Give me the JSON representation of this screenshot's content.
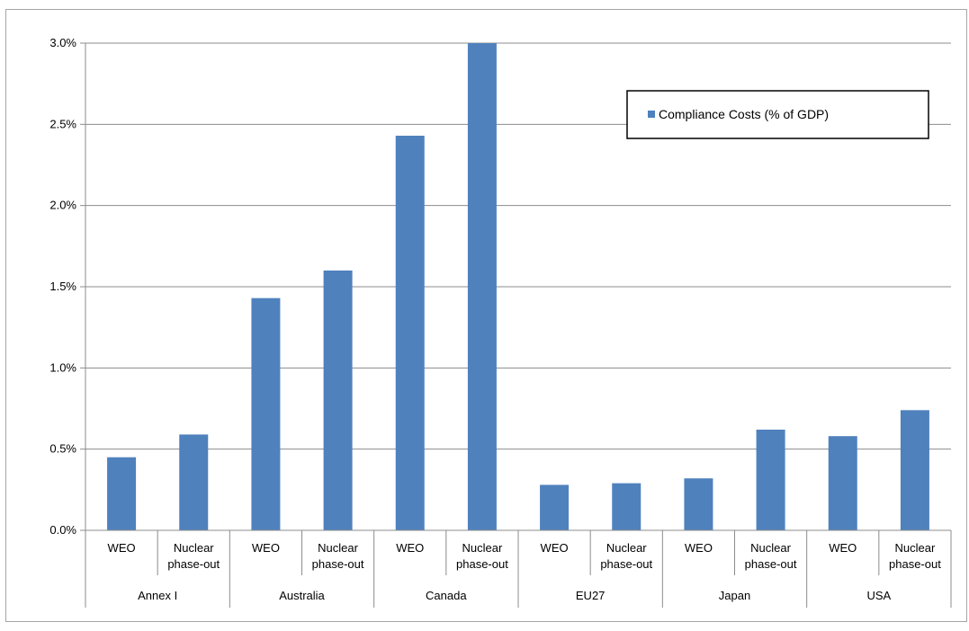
{
  "chart_data": {
    "type": "bar",
    "categories": [
      [
        "WEO"
      ],
      [
        "Nuclear",
        "phase-out"
      ],
      [
        "WEO"
      ],
      [
        "Nuclear",
        "phase-out"
      ],
      [
        "WEO"
      ],
      [
        "Nuclear",
        "phase-out"
      ],
      [
        "WEO"
      ],
      [
        "Nuclear",
        "phase-out"
      ],
      [
        "WEO"
      ],
      [
        "Nuclear",
        "phase-out"
      ],
      [
        "WEO"
      ],
      [
        "Nuclear",
        "phase-out"
      ]
    ],
    "groups": [
      "Annex I",
      "Australia",
      "Canada",
      "EU27",
      "Japan",
      "USA"
    ],
    "series": [
      {
        "name": "Compliance Costs (% of GDP)",
        "values": [
          0.45,
          0.59,
          1.43,
          1.6,
          2.43,
          3.0,
          0.28,
          0.29,
          0.32,
          0.62,
          0.58,
          0.74
        ],
        "color": "#4f81bd"
      }
    ],
    "yticks": [
      "0.0%",
      "0.5%",
      "1.0%",
      "1.5%",
      "2.0%",
      "2.5%",
      "3.0%"
    ],
    "ylim": [
      0,
      3.0
    ],
    "ylabel": "",
    "xlabel": "",
    "title": "",
    "grid": true,
    "legend_position": "top-right"
  }
}
